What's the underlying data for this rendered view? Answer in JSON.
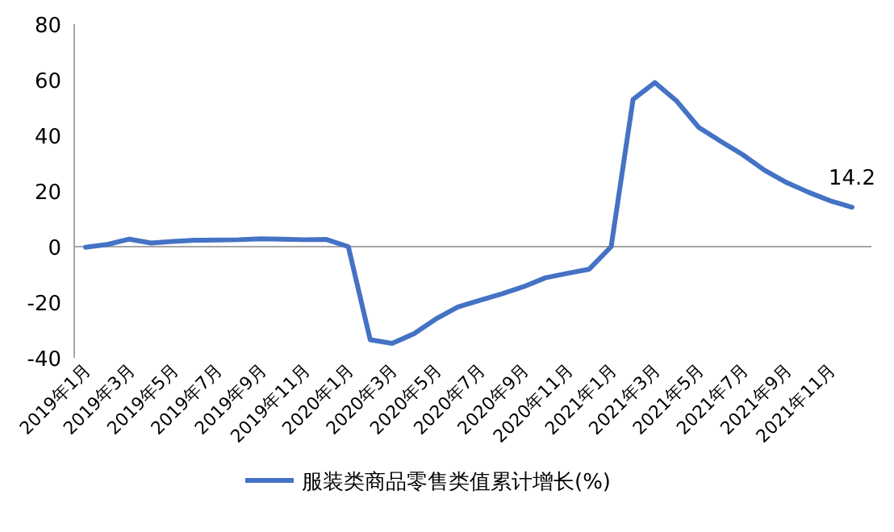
{
  "chart_data": {
    "type": "line",
    "categories": [
      "2019年1月",
      null,
      "2019年3月",
      null,
      "2019年5月",
      null,
      "2019年7月",
      null,
      "2019年9月",
      null,
      "2019年11月",
      null,
      "2020年1月",
      null,
      "2020年3月",
      null,
      "2020年5月",
      null,
      "2020年7月",
      null,
      "2020年9月",
      null,
      "2020年11月",
      null,
      "2021年1月",
      null,
      "2021年3月",
      null,
      "2021年5月",
      null,
      "2021年7月",
      null,
      "2021年9月",
      null,
      "2021年11月",
      null
    ],
    "series": [
      {
        "name": "服装类商品零售类值累计增长(%)",
        "color": "#4472c4",
        "values": [
          -0.2,
          0.8,
          2.7,
          1.3,
          1.9,
          2.3,
          2.4,
          2.5,
          2.8,
          2.7,
          2.5,
          2.6,
          0,
          -33.5,
          -34.8,
          -31.3,
          -26,
          -21.7,
          -19.3,
          -17,
          -14.4,
          -11.2,
          -9.6,
          -8.1,
          0,
          52.9,
          59,
          52.3,
          42.9,
          37.9,
          33.1,
          27.5,
          23.1,
          19.6,
          16.5,
          14.2
        ],
        "value_labels": [
          null,
          null,
          null,
          null,
          null,
          null,
          null,
          null,
          null,
          null,
          null,
          null,
          null,
          null,
          null,
          null,
          null,
          null,
          null,
          null,
          null,
          null,
          null,
          null,
          null,
          null,
          null,
          null,
          null,
          null,
          null,
          null,
          null,
          null,
          null,
          "14.2"
        ]
      }
    ],
    "ylim": [
      -40,
      80
    ],
    "yticks": [
      -40,
      -20,
      0,
      20,
      40,
      60,
      80
    ],
    "legend": "bottom",
    "marker": "none",
    "line_style": "solid"
  }
}
